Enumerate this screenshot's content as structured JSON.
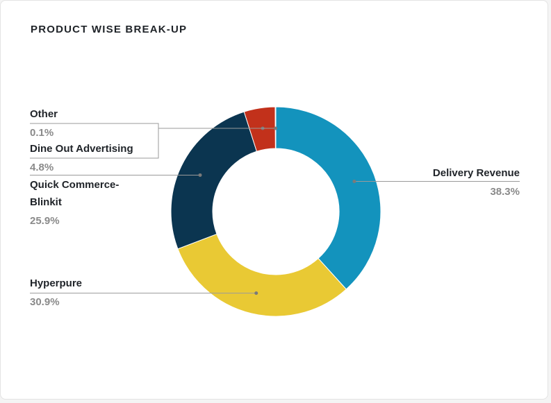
{
  "chart_data": {
    "type": "pie",
    "variant": "donut",
    "title": "PRODUCT WISE BREAK-UP",
    "slices": [
      {
        "name": "Delivery Revenue",
        "label_lines": [
          "Delivery Revenue"
        ],
        "pct_label": "38.3%",
        "value": 38.3,
        "color": "#1393bd"
      },
      {
        "name": "Hyperpure",
        "label_lines": [
          "Hyperpure"
        ],
        "pct_label": "30.9%",
        "value": 30.9,
        "color": "#e9c934"
      },
      {
        "name": "Quick Commerce-Blinkit",
        "label_lines": [
          "Quick Commerce-",
          "Blinkit"
        ],
        "pct_label": "25.9%",
        "value": 25.9,
        "color": "#0b3550"
      },
      {
        "name": "Dine Out Advertising",
        "label_lines": [
          "Dine Out Advertising"
        ],
        "pct_label": "4.8%",
        "value": 4.8,
        "color": "#c2311b"
      },
      {
        "name": "Other",
        "label_lines": [
          "Other"
        ],
        "pct_label": "0.1%",
        "value": 0.1,
        "color": "#7d7d7d"
      }
    ]
  }
}
